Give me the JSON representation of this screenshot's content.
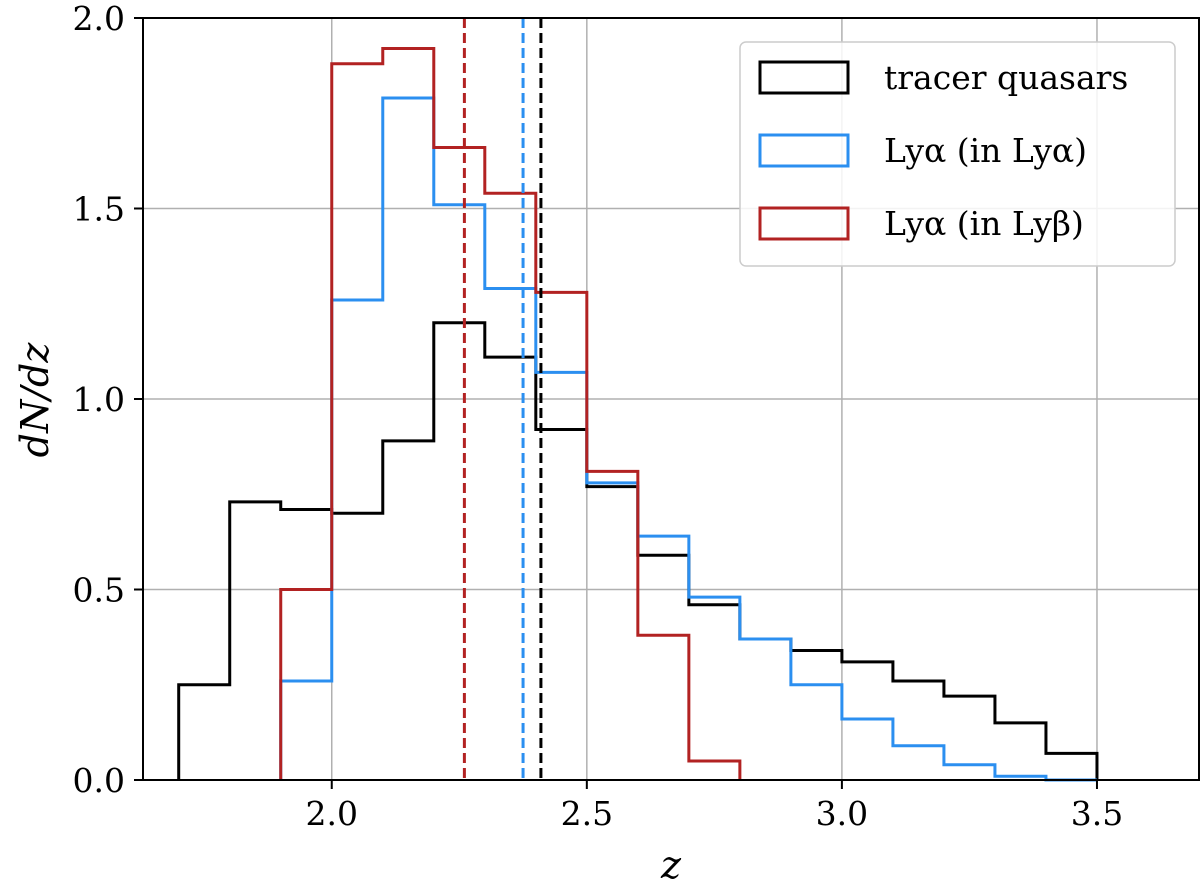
{
  "chart_data": {
    "type": "histogram",
    "xlabel": "z",
    "ylabel": "dN/dz",
    "xlim": [
      1.63,
      3.7
    ],
    "ylim": [
      0.0,
      2.0
    ],
    "grid": true,
    "xticks": [
      2.0,
      2.5,
      3.0,
      3.5
    ],
    "xtick_labels": [
      "2.0",
      "2.5",
      "3.0",
      "3.5"
    ],
    "yticks": [
      0.0,
      0.5,
      1.0,
      1.5,
      2.0
    ],
    "ytick_labels": [
      "0.0",
      "0.5",
      "1.0",
      "1.5",
      "2.0"
    ],
    "legend_position": "top-right",
    "series": [
      {
        "name": "tracer quasars",
        "legend_label": "tracer quasars",
        "color": "#000000",
        "bin_edges": [
          1.7,
          1.8,
          1.9,
          2.0,
          2.1,
          2.2,
          2.3,
          2.4,
          2.5,
          2.6,
          2.7,
          2.8,
          2.9,
          3.0,
          3.1,
          3.2,
          3.3,
          3.4,
          3.5
        ],
        "values": [
          0.25,
          0.73,
          0.71,
          0.7,
          0.89,
          1.2,
          1.11,
          0.92,
          0.77,
          0.59,
          0.46,
          0.37,
          0.34,
          0.31,
          0.26,
          0.22,
          0.15,
          0.07
        ],
        "median": 2.41
      },
      {
        "name": "Lya in Lya",
        "legend_label": "Lyα (in Lyα)",
        "color": "#2b8ff0",
        "bin_edges": [
          1.9,
          2.0,
          2.1,
          2.2,
          2.3,
          2.4,
          2.5,
          2.6,
          2.7,
          2.8,
          2.9,
          3.0,
          3.1,
          3.2,
          3.3,
          3.4,
          3.5
        ],
        "values": [
          0.26,
          1.26,
          1.79,
          1.51,
          1.29,
          1.07,
          0.78,
          0.64,
          0.48,
          0.37,
          0.25,
          0.16,
          0.09,
          0.04,
          0.01,
          0.0
        ],
        "median": 2.375
      },
      {
        "name": "Lya in Lyb",
        "legend_label": "Lyα (in Lyβ)",
        "color": "#b22222",
        "bin_edges": [
          1.9,
          2.0,
          2.1,
          2.2,
          2.3,
          2.4,
          2.5,
          2.6,
          2.7,
          2.8
        ],
        "values": [
          0.5,
          1.88,
          1.92,
          1.66,
          1.54,
          1.28,
          0.81,
          0.38,
          0.05
        ],
        "median": 2.26
      }
    ]
  }
}
